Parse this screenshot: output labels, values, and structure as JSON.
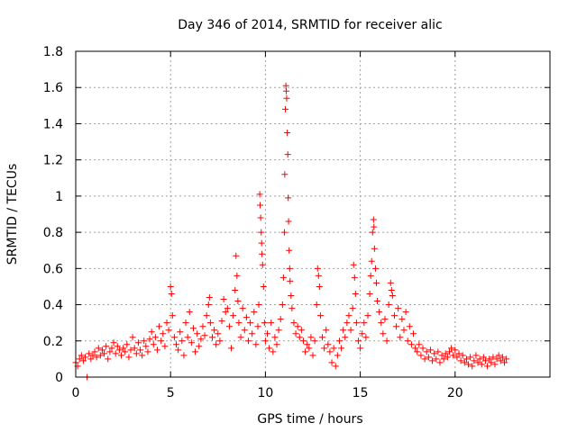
{
  "chart_data": {
    "type": "scatter",
    "title": "Day 346 of 2014, SRMTID for receiver alic",
    "xlabel": "GPS time / hours",
    "ylabel": "SRMTID / TECUs",
    "xlim": [
      0,
      25
    ],
    "ylim": [
      0,
      1.8
    ],
    "xticks": [
      "0",
      "5",
      "10",
      "15",
      "20"
    ],
    "yticks": [
      "0",
      "0.2",
      "0.4",
      "0.6",
      "0.8",
      "1",
      "1.2",
      "1.4",
      "1.6",
      "1.8"
    ],
    "grid": true,
    "marker": "+",
    "series": [
      {
        "name": "SRMTID",
        "color": "#ff0000",
        "points": [
          [
            0.0,
            0.08
          ],
          [
            0.1,
            0.06
          ],
          [
            0.2,
            0.1
          ],
          [
            0.3,
            0.12
          ],
          [
            0.4,
            0.09
          ],
          [
            0.5,
            0.11
          ],
          [
            0.6,
            0.0
          ],
          [
            0.7,
            0.13
          ],
          [
            0.8,
            0.1
          ],
          [
            0.9,
            0.12
          ],
          [
            1.0,
            0.14
          ],
          [
            1.1,
            0.11
          ],
          [
            1.2,
            0.16
          ],
          [
            1.3,
            0.12
          ],
          [
            1.4,
            0.15
          ],
          [
            1.5,
            0.13
          ],
          [
            1.6,
            0.17
          ],
          [
            1.7,
            0.1
          ],
          [
            1.8,
            0.14
          ],
          [
            1.9,
            0.16
          ],
          [
            2.0,
            0.19
          ],
          [
            2.1,
            0.13
          ],
          [
            2.2,
            0.17
          ],
          [
            2.3,
            0.15
          ],
          [
            2.4,
            0.12
          ],
          [
            2.5,
            0.16
          ],
          [
            2.6,
            0.14
          ],
          [
            2.7,
            0.18
          ],
          [
            2.8,
            0.11
          ],
          [
            2.9,
            0.15
          ],
          [
            3.0,
            0.22
          ],
          [
            3.1,
            0.16
          ],
          [
            3.2,
            0.13
          ],
          [
            3.3,
            0.19
          ],
          [
            3.4,
            0.15
          ],
          [
            3.5,
            0.12
          ],
          [
            3.6,
            0.2
          ],
          [
            3.7,
            0.17
          ],
          [
            3.8,
            0.14
          ],
          [
            3.9,
            0.21
          ],
          [
            4.0,
            0.25
          ],
          [
            4.1,
            0.18
          ],
          [
            4.2,
            0.22
          ],
          [
            4.3,
            0.15
          ],
          [
            4.4,
            0.28
          ],
          [
            4.5,
            0.2
          ],
          [
            4.6,
            0.24
          ],
          [
            4.7,
            0.17
          ],
          [
            4.8,
            0.3
          ],
          [
            4.9,
            0.26
          ],
          [
            5.0,
            0.5
          ],
          [
            5.05,
            0.46
          ],
          [
            5.1,
            0.34
          ],
          [
            5.2,
            0.22
          ],
          [
            5.3,
            0.18
          ],
          [
            5.4,
            0.15
          ],
          [
            5.5,
            0.25
          ],
          [
            5.6,
            0.2
          ],
          [
            5.7,
            0.12
          ],
          [
            5.8,
            0.3
          ],
          [
            5.9,
            0.22
          ],
          [
            6.0,
            0.36
          ],
          [
            6.1,
            0.19
          ],
          [
            6.2,
            0.27
          ],
          [
            6.3,
            0.14
          ],
          [
            6.4,
            0.24
          ],
          [
            6.5,
            0.17
          ],
          [
            6.6,
            0.21
          ],
          [
            6.7,
            0.28
          ],
          [
            6.8,
            0.23
          ],
          [
            6.9,
            0.34
          ],
          [
            7.0,
            0.4
          ],
          [
            7.05,
            0.44
          ],
          [
            7.1,
            0.3
          ],
          [
            7.2,
            0.22
          ],
          [
            7.3,
            0.26
          ],
          [
            7.4,
            0.18
          ],
          [
            7.5,
            0.24
          ],
          [
            7.6,
            0.2
          ],
          [
            7.7,
            0.31
          ],
          [
            7.8,
            0.43
          ],
          [
            7.9,
            0.36
          ],
          [
            8.0,
            0.38
          ],
          [
            8.1,
            0.28
          ],
          [
            8.2,
            0.16
          ],
          [
            8.3,
            0.34
          ],
          [
            8.4,
            0.48
          ],
          [
            8.45,
            0.67
          ],
          [
            8.5,
            0.56
          ],
          [
            8.55,
            0.42
          ],
          [
            8.6,
            0.3
          ],
          [
            8.7,
            0.22
          ],
          [
            8.8,
            0.38
          ],
          [
            8.9,
            0.26
          ],
          [
            9.0,
            0.33
          ],
          [
            9.1,
            0.2
          ],
          [
            9.2,
            0.3
          ],
          [
            9.3,
            0.24
          ],
          [
            9.4,
            0.36
          ],
          [
            9.5,
            0.18
          ],
          [
            9.6,
            0.28
          ],
          [
            9.65,
            0.4
          ],
          [
            9.7,
            1.01
          ],
          [
            9.72,
            0.95
          ],
          [
            9.75,
            0.88
          ],
          [
            9.78,
            0.8
          ],
          [
            9.8,
            0.74
          ],
          [
            9.82,
            0.68
          ],
          [
            9.85,
            0.62
          ],
          [
            9.9,
            0.5
          ],
          [
            9.95,
            0.3
          ],
          [
            10.0,
            0.2
          ],
          [
            10.1,
            0.24
          ],
          [
            10.2,
            0.16
          ],
          [
            10.3,
            0.3
          ],
          [
            10.4,
            0.14
          ],
          [
            10.5,
            0.22
          ],
          [
            10.6,
            0.18
          ],
          [
            10.7,
            0.26
          ],
          [
            10.8,
            0.32
          ],
          [
            10.9,
            0.4
          ],
          [
            10.95,
            0.55
          ],
          [
            11.0,
            0.8
          ],
          [
            11.02,
            1.12
          ],
          [
            11.05,
            1.48
          ],
          [
            11.08,
            1.61
          ],
          [
            11.1,
            1.58
          ],
          [
            11.12,
            1.54
          ],
          [
            11.15,
            1.35
          ],
          [
            11.18,
            1.23
          ],
          [
            11.2,
            0.99
          ],
          [
            11.22,
            0.86
          ],
          [
            11.25,
            0.7
          ],
          [
            11.28,
            0.6
          ],
          [
            11.3,
            0.53
          ],
          [
            11.35,
            0.45
          ],
          [
            11.4,
            0.38
          ],
          [
            11.5,
            0.3
          ],
          [
            11.6,
            0.24
          ],
          [
            11.7,
            0.28
          ],
          [
            11.8,
            0.22
          ],
          [
            11.9,
            0.26
          ],
          [
            12.0,
            0.2
          ],
          [
            12.1,
            0.14
          ],
          [
            12.2,
            0.18
          ],
          [
            12.3,
            0.16
          ],
          [
            12.4,
            0.22
          ],
          [
            12.5,
            0.12
          ],
          [
            12.6,
            0.2
          ],
          [
            12.7,
            0.4
          ],
          [
            12.75,
            0.6
          ],
          [
            12.8,
            0.56
          ],
          [
            12.85,
            0.5
          ],
          [
            12.9,
            0.34
          ],
          [
            13.0,
            0.22
          ],
          [
            13.1,
            0.16
          ],
          [
            13.2,
            0.26
          ],
          [
            13.3,
            0.18
          ],
          [
            13.4,
            0.14
          ],
          [
            13.5,
            0.08
          ],
          [
            13.6,
            0.16
          ],
          [
            13.7,
            0.06
          ],
          [
            13.8,
            0.12
          ],
          [
            13.9,
            0.2
          ],
          [
            14.0,
            0.16
          ],
          [
            14.1,
            0.26
          ],
          [
            14.2,
            0.22
          ],
          [
            14.3,
            0.3
          ],
          [
            14.4,
            0.34
          ],
          [
            14.5,
            0.26
          ],
          [
            14.6,
            0.38
          ],
          [
            14.65,
            0.62
          ],
          [
            14.7,
            0.55
          ],
          [
            14.75,
            0.46
          ],
          [
            14.8,
            0.3
          ],
          [
            14.9,
            0.2
          ],
          [
            15.0,
            0.16
          ],
          [
            15.1,
            0.24
          ],
          [
            15.2,
            0.3
          ],
          [
            15.3,
            0.22
          ],
          [
            15.4,
            0.34
          ],
          [
            15.5,
            0.46
          ],
          [
            15.55,
            0.56
          ],
          [
            15.6,
            0.64
          ],
          [
            15.65,
            0.8
          ],
          [
            15.7,
            0.87
          ],
          [
            15.72,
            0.83
          ],
          [
            15.75,
            0.71
          ],
          [
            15.8,
            0.6
          ],
          [
            15.85,
            0.52
          ],
          [
            15.9,
            0.42
          ],
          [
            16.0,
            0.36
          ],
          [
            16.1,
            0.3
          ],
          [
            16.2,
            0.24
          ],
          [
            16.3,
            0.32
          ],
          [
            16.4,
            0.2
          ],
          [
            16.5,
            0.4
          ],
          [
            16.6,
            0.52
          ],
          [
            16.65,
            0.48
          ],
          [
            16.7,
            0.45
          ],
          [
            16.8,
            0.34
          ],
          [
            16.9,
            0.28
          ],
          [
            17.0,
            0.38
          ],
          [
            17.1,
            0.22
          ],
          [
            17.2,
            0.32
          ],
          [
            17.3,
            0.26
          ],
          [
            17.4,
            0.36
          ],
          [
            17.5,
            0.2
          ],
          [
            17.6,
            0.28
          ],
          [
            17.7,
            0.18
          ],
          [
            17.8,
            0.24
          ],
          [
            17.9,
            0.16
          ],
          [
            18.0,
            0.14
          ],
          [
            18.1,
            0.18
          ],
          [
            18.2,
            0.12
          ],
          [
            18.3,
            0.16
          ],
          [
            18.4,
            0.1
          ],
          [
            18.5,
            0.14
          ],
          [
            18.6,
            0.11
          ],
          [
            18.7,
            0.15
          ],
          [
            18.8,
            0.09
          ],
          [
            18.9,
            0.13
          ],
          [
            19.0,
            0.1
          ],
          [
            19.1,
            0.14
          ],
          [
            19.2,
            0.08
          ],
          [
            19.3,
            0.12
          ],
          [
            19.4,
            0.1
          ],
          [
            19.5,
            0.13
          ],
          [
            19.6,
            0.11
          ],
          [
            19.7,
            0.14
          ],
          [
            19.8,
            0.16
          ],
          [
            19.9,
            0.12
          ],
          [
            20.0,
            0.15
          ],
          [
            20.1,
            0.11
          ],
          [
            20.2,
            0.13
          ],
          [
            20.3,
            0.09
          ],
          [
            20.4,
            0.12
          ],
          [
            20.5,
            0.08
          ],
          [
            20.6,
            0.1
          ],
          [
            20.7,
            0.07
          ],
          [
            20.8,
            0.11
          ],
          [
            20.9,
            0.06
          ],
          [
            21.0,
            0.09
          ],
          [
            21.1,
            0.12
          ],
          [
            21.2,
            0.08
          ],
          [
            21.3,
            0.1
          ],
          [
            21.4,
            0.07
          ],
          [
            21.5,
            0.11
          ],
          [
            21.6,
            0.09
          ],
          [
            21.7,
            0.06
          ],
          [
            21.8,
            0.1
          ],
          [
            21.9,
            0.08
          ],
          [
            22.0,
            0.11
          ],
          [
            22.1,
            0.07
          ],
          [
            22.2,
            0.1
          ],
          [
            22.3,
            0.12
          ],
          [
            22.4,
            0.09
          ],
          [
            22.5,
            0.11
          ],
          [
            22.6,
            0.08
          ],
          [
            22.7,
            0.1
          ]
        ]
      }
    ]
  }
}
